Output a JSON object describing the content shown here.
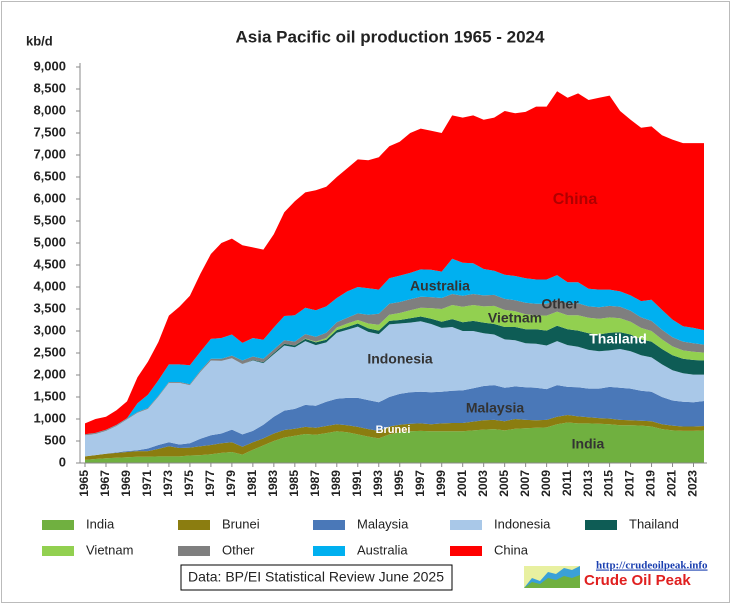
{
  "chart_data": {
    "type": "stacked-area",
    "title": "Asia Pacific oil production 1965 - 2024",
    "ylabel": "kb/d",
    "source": "Data: BP/EI Statistical Review June 2025",
    "watermark_url": "http://crudeoilpeak.info",
    "watermark_title": "Crude Oil Peak",
    "x": [
      1965,
      1966,
      1967,
      1968,
      1969,
      1970,
      1971,
      1972,
      1973,
      1974,
      1975,
      1976,
      1977,
      1978,
      1979,
      1980,
      1981,
      1982,
      1983,
      1984,
      1985,
      1986,
      1987,
      1988,
      1989,
      1990,
      1991,
      1992,
      1993,
      1994,
      1995,
      1996,
      1997,
      1998,
      1999,
      2000,
      2001,
      2002,
      2003,
      2004,
      2005,
      2006,
      2007,
      2008,
      2009,
      2010,
      2011,
      2012,
      2013,
      2014,
      2015,
      2016,
      2017,
      2018,
      2019,
      2020,
      2021,
      2022,
      2023,
      2024
    ],
    "xlim": [
      1965,
      2024
    ],
    "xticks": [
      1965,
      1967,
      1969,
      1971,
      1973,
      1975,
      1977,
      1979,
      1981,
      1983,
      1985,
      1987,
      1989,
      1991,
      1993,
      1995,
      1997,
      1999,
      2001,
      2003,
      2005,
      2007,
      2009,
      2011,
      2013,
      2015,
      2017,
      2019,
      2021,
      2023
    ],
    "ylim": [
      0,
      9000
    ],
    "yticks": [
      0,
      500,
      {
        "value": 1000,
        "label": "1,000"
      },
      {
        "value": 1500,
        "label": "1,500"
      },
      {
        "value": 2000,
        "label": "2,000"
      },
      {
        "value": 2500,
        "label": "2,500"
      },
      {
        "value": 3000,
        "label": "3,000"
      },
      {
        "value": 3500,
        "label": "3,500"
      },
      {
        "value": 4000,
        "label": "4,000"
      },
      {
        "value": 4500,
        "label": "4,500"
      },
      {
        "value": 5000,
        "label": "5,000"
      },
      {
        "value": 5500,
        "label": "5,500"
      },
      {
        "value": 6000,
        "label": "6,000"
      },
      {
        "value": 6500,
        "label": "6,500"
      },
      {
        "value": 7000,
        "label": "7,000"
      },
      {
        "value": 7500,
        "label": "7,500"
      },
      {
        "value": 8000,
        "label": "8,000"
      },
      {
        "value": 8500,
        "label": "8,500"
      },
      {
        "value": 9000,
        "label": "9,000"
      }
    ],
    "grid": false,
    "series": [
      {
        "name": "India",
        "color": "#70b040",
        "values": [
          70,
          90,
          110,
          120,
          130,
          140,
          140,
          150,
          150,
          150,
          170,
          180,
          200,
          230,
          250,
          190,
          300,
          400,
          500,
          580,
          620,
          660,
          640,
          680,
          720,
          700,
          650,
          600,
          560,
          650,
          700,
          720,
          730,
          720,
          720,
          720,
          720,
          740,
          760,
          770,
          740,
          780,
          790,
          800,
          810,
          880,
          920,
          900,
          900,
          890,
          880,
          860,
          860,
          850,
          830,
          770,
          740,
          730,
          730,
          740
        ]
      },
      {
        "name": "Brunei",
        "color": "#8b7d10",
        "values": [
          80,
          90,
          100,
          110,
          120,
          130,
          130,
          170,
          230,
          190,
          180,
          200,
          210,
          220,
          220,
          180,
          170,
          160,
          170,
          170,
          160,
          160,
          160,
          160,
          160,
          160,
          170,
          170,
          170,
          180,
          170,
          170,
          170,
          160,
          180,
          190,
          190,
          200,
          210,
          210,
          210,
          220,
          190,
          170,
          170,
          170,
          170,
          160,
          140,
          130,
          130,
          120,
          110,
          110,
          120,
          110,
          110,
          100,
          100,
          100
        ]
      },
      {
        "name": "Malaysia",
        "color": "#4a78b8",
        "values": [
          0,
          0,
          0,
          10,
          20,
          20,
          60,
          90,
          90,
          80,
          100,
          170,
          220,
          220,
          290,
          280,
          260,
          310,
          380,
          440,
          450,
          500,
          500,
          550,
          580,
          620,
          660,
          660,
          650,
          670,
          700,
          720,
          720,
          730,
          720,
          730,
          740,
          760,
          780,
          790,
          760,
          740,
          740,
          740,
          700,
          720,
          640,
          660,
          650,
          670,
          720,
          730,
          720,
          680,
          670,
          620,
          570,
          560,
          550,
          570
        ]
      },
      {
        "name": "Indonesia",
        "color": "#a9c8e8",
        "values": [
          480,
          480,
          520,
          600,
          720,
          850,
          900,
          1100,
          1350,
          1400,
          1320,
          1520,
          1700,
          1650,
          1620,
          1600,
          1600,
          1400,
          1420,
          1480,
          1400,
          1450,
          1380,
          1350,
          1500,
          1550,
          1620,
          1550,
          1550,
          1650,
          1600,
          1580,
          1600,
          1550,
          1450,
          1450,
          1350,
          1300,
          1200,
          1150,
          1100,
          1050,
          1000,
          1000,
          990,
          1000,
          950,
          920,
          880,
          850,
          830,
          880,
          850,
          810,
          780,
          740,
          690,
          650,
          630,
          600
        ]
      },
      {
        "name": "Thailand",
        "color": "#0e5c55",
        "values": [
          0,
          0,
          0,
          0,
          0,
          0,
          0,
          0,
          0,
          0,
          0,
          0,
          0,
          0,
          0,
          0,
          10,
          20,
          30,
          40,
          40,
          50,
          60,
          60,
          60,
          60,
          70,
          80,
          80,
          80,
          80,
          100,
          110,
          120,
          140,
          180,
          200,
          230,
          240,
          240,
          280,
          300,
          320,
          330,
          340,
          350,
          360,
          370,
          380,
          380,
          400,
          380,
          380,
          360,
          360,
          350,
          340,
          330,
          330,
          320
        ]
      },
      {
        "name": "Vietnam",
        "color": "#92d050",
        "values": [
          0,
          0,
          0,
          0,
          0,
          0,
          0,
          0,
          0,
          0,
          0,
          0,
          0,
          0,
          0,
          0,
          0,
          0,
          0,
          0,
          0,
          10,
          20,
          40,
          60,
          80,
          80,
          110,
          130,
          140,
          160,
          180,
          200,
          240,
          290,
          320,
          350,
          360,
          370,
          410,
          390,
          360,
          340,
          320,
          340,
          320,
          320,
          350,
          350,
          360,
          350,
          320,
          290,
          260,
          240,
          220,
          200,
          190,
          190,
          180
        ]
      },
      {
        "name": "Other",
        "color": "#7f7f7f",
        "values": [
          20,
          20,
          20,
          20,
          20,
          20,
          20,
          20,
          20,
          20,
          20,
          30,
          40,
          50,
          60,
          80,
          80,
          80,
          80,
          80,
          90,
          100,
          110,
          120,
          120,
          130,
          150,
          200,
          250,
          250,
          250,
          250,
          250,
          250,
          250,
          250,
          250,
          250,
          250,
          250,
          250,
          250,
          260,
          260,
          270,
          270,
          270,
          270,
          260,
          260,
          260,
          260,
          250,
          240,
          230,
          220,
          210,
          200,
          190,
          180
        ]
      },
      {
        "name": "Australia",
        "color": "#00b0f0",
        "values": [
          5,
          5,
          5,
          5,
          5,
          200,
          300,
          350,
          400,
          400,
          430,
          430,
          450,
          470,
          480,
          400,
          420,
          430,
          500,
          550,
          600,
          600,
          600,
          600,
          550,
          600,
          600,
          600,
          550,
          580,
          600,
          600,
          620,
          620,
          600,
          800,
          750,
          700,
          600,
          550,
          550,
          550,
          560,
          550,
          550,
          560,
          480,
          480,
          400,
          400,
          370,
          350,
          350,
          370,
          480,
          450,
          400,
          350,
          350,
          330
        ]
      },
      {
        "name": "China",
        "color": "#ff0000",
        "values": [
          245,
          315,
          295,
          335,
          385,
          590,
          750,
          870,
          1110,
          1310,
          1580,
          1770,
          1930,
          2160,
          2180,
          2220,
          2060,
          2050,
          2120,
          2360,
          2590,
          2620,
          2730,
          2720,
          2750,
          2800,
          2900,
          2910,
          3010,
          3000,
          3040,
          3180,
          3200,
          3160,
          3150,
          3260,
          3300,
          3360,
          3390,
          3480,
          3720,
          3700,
          3780,
          3930,
          3930,
          4180,
          4190,
          4290,
          4290,
          4360,
          4410,
          4100,
          3990,
          3940,
          3940,
          3970,
          4090,
          4160,
          4200,
          4250
        ]
      }
    ]
  }
}
